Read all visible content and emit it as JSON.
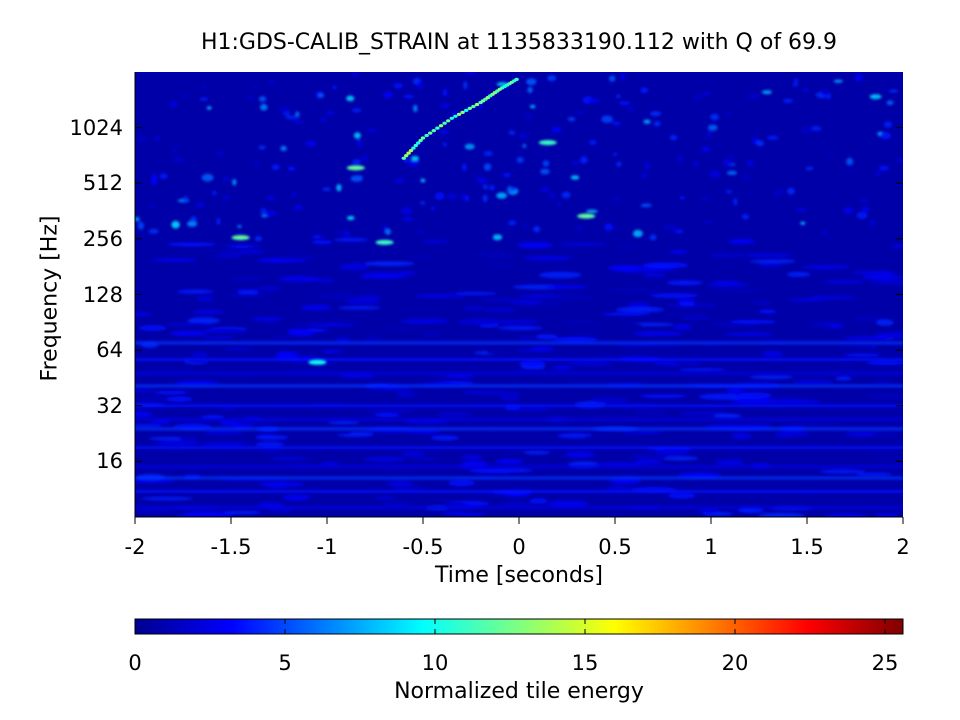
{
  "chart_data": {
    "type": "heatmap",
    "title": "H1:GDS-CALIB_STRAIN at 1135833190.112 with Q of 69.9",
    "xlabel": "Time [seconds]",
    "ylabel": "Frequency [Hz]",
    "xlim": [
      -2,
      2
    ],
    "ylim_hz": [
      8,
      2048
    ],
    "yscale": "log2",
    "x_ticks": [
      "-2",
      "-1.5",
      "-1",
      "-0.5",
      "0",
      "0.5",
      "1",
      "1.5",
      "2"
    ],
    "x_tick_values": [
      -2,
      -1.5,
      -1,
      -0.5,
      0,
      0.5,
      1,
      1.5,
      2
    ],
    "y_ticks": [
      "16",
      "32",
      "64",
      "128",
      "256",
      "512",
      "1024"
    ],
    "y_tick_values": [
      16,
      32,
      64,
      128,
      256,
      512,
      1024
    ],
    "colorbar": {
      "label": "Normalized tile energy",
      "range": [
        0,
        25.6
      ],
      "ticks": [
        "0",
        "5",
        "10",
        "15",
        "20",
        "25"
      ],
      "tick_values": [
        0,
        5,
        10,
        15,
        20,
        25
      ],
      "colormap": "jet"
    },
    "features": {
      "chirp_track": {
        "t": [
          -0.6,
          -0.5,
          -0.35,
          -0.2,
          -0.1,
          0.0
        ],
        "f_hz": [
          700,
          900,
          1150,
          1400,
          1650,
          1900
        ],
        "energy": 14
      },
      "low_frequency_lines_hz": [
        9,
        11,
        13,
        15,
        19,
        24,
        27,
        32,
        41,
        48,
        57,
        70
      ],
      "hot_spots": [
        {
          "t": -1.45,
          "f_hz": 260,
          "energy": 12
        },
        {
          "t": -0.7,
          "f_hz": 245,
          "energy": 11
        },
        {
          "t": -0.85,
          "f_hz": 620,
          "energy": 12
        },
        {
          "t": 0.35,
          "f_hz": 340,
          "energy": 12
        },
        {
          "t": -1.05,
          "f_hz": 55,
          "energy": 10
        },
        {
          "t": 0.15,
          "f_hz": 850,
          "energy": 11
        }
      ]
    }
  },
  "colors": {
    "background": "#ffffff",
    "noise_floor": "#0000a8",
    "text": "#000000"
  }
}
